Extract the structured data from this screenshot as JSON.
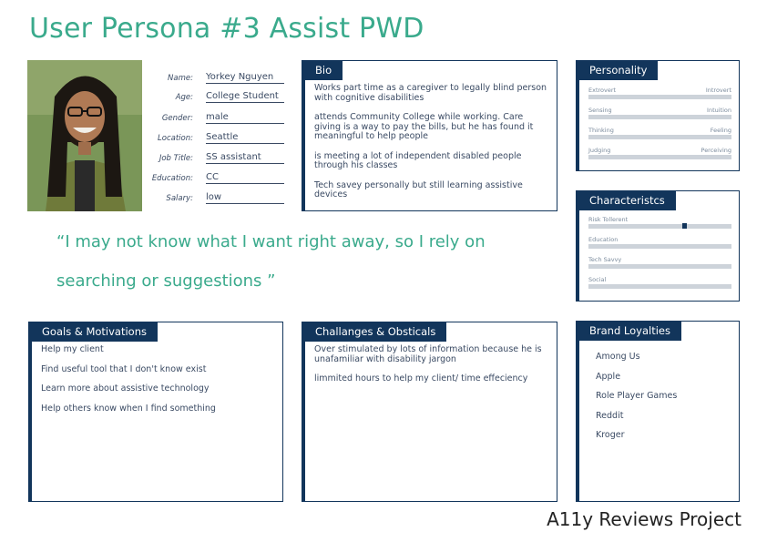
{
  "title": "User Persona #3 Assist PWD",
  "profile": {
    "fields": [
      {
        "label": "Name:",
        "value": "Yorkey Nguyen"
      },
      {
        "label": "Age:",
        "value": "College Student"
      },
      {
        "label": "Gender:",
        "value": "male"
      },
      {
        "label": "Location:",
        "value": "Seattle"
      },
      {
        "label": "Job Title:",
        "value": "SS assistant"
      },
      {
        "label": "Education:",
        "value": "CC"
      },
      {
        "label": "Salary:",
        "value": "low"
      }
    ]
  },
  "bio": {
    "heading": "Bio",
    "paragraphs": [
      "Works part time as a caregiver to legally blind person with cognitive disabilities",
      "attends Community College while working. Care giving is a way to pay the bills, but he has found it meaningful to help people",
      "is meeting a lot of independent disabled people through his classes",
      "Tech savey personally but still learning assistive devices"
    ]
  },
  "quote": {
    "line1": "“I may not know what I want right away, so I rely on",
    "line2": "searching or suggestions ”"
  },
  "personality": {
    "heading": "Personality",
    "scales": [
      {
        "left": "Extrovert",
        "right": "Introvert"
      },
      {
        "left": "Sensing",
        "right": "Intuition"
      },
      {
        "left": "Thinking",
        "right": "Feeling"
      },
      {
        "left": "Judging",
        "right": "Perceiving"
      }
    ]
  },
  "characteristics": {
    "heading": "Characteristcs",
    "scales": [
      {
        "label": "Risk Tollerent",
        "level": 0.67
      },
      {
        "label": "Education"
      },
      {
        "label": "Tech Savvy"
      },
      {
        "label": "Social"
      }
    ]
  },
  "goals": {
    "heading": "Goals & Motivations",
    "items": [
      "Help my client",
      "Find useful tool that I don't know exist",
      "Learn more about assistive technology",
      "Help others know when I find something"
    ]
  },
  "challenges": {
    "heading": "Challanges & Obsticals",
    "items": [
      "Over stimulated by lots of information because he is unafamiliar with disability jargon",
      "limmited hours to help my client/ time effeciency"
    ]
  },
  "brands": {
    "heading": "Brand Loyalties",
    "items": [
      "Among Us",
      "Apple",
      "Role Player Games",
      "Reddit",
      "Kroger"
    ]
  },
  "footer": "A11y Reviews Project"
}
